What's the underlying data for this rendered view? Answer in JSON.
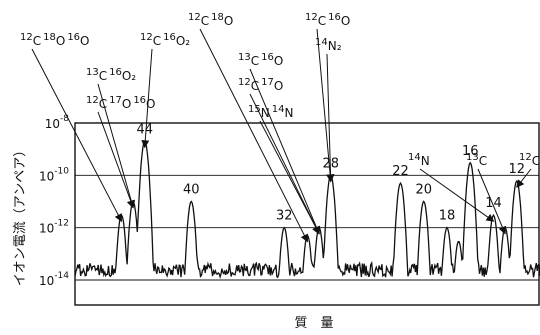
{
  "chart_data": {
    "type": "line",
    "title": "",
    "xlabel": "質　量",
    "ylabel": "イオン電流（アンペア）",
    "y_scale": "log",
    "ylim": [
      1e-14,
      1e-08
    ],
    "y_ticks": [
      {
        "value": 1e-08,
        "base": "10",
        "exp": "-8"
      },
      {
        "value": 1e-10,
        "base": "10",
        "exp": "-10"
      },
      {
        "value": 1e-12,
        "base": "10",
        "exp": "-12"
      },
      {
        "value": 1e-14,
        "base": "10",
        "exp": "-14"
      }
    ],
    "x_direction": "mass decreasing left to right",
    "grid": "horizontal lines at tick values",
    "peaks": [
      {
        "mass": 46,
        "height": 3e-12
      },
      {
        "mass": 45,
        "height": 1e-11
      },
      {
        "mass": 44,
        "height": 2e-09
      },
      {
        "mass": 40,
        "height": 1e-11
      },
      {
        "mass": 32,
        "height": 1e-12
      },
      {
        "mass": 30,
        "height": 5e-13
      },
      {
        "mass": 29,
        "height": 1e-12
      },
      {
        "mass": 28,
        "height": 1e-10
      },
      {
        "mass": 22,
        "height": 5e-11
      },
      {
        "mass": 20,
        "height": 1e-11
      },
      {
        "mass": 18,
        "height": 1e-12
      },
      {
        "mass": 17,
        "height": 3e-13
      },
      {
        "mass": 16,
        "height": 3e-10
      },
      {
        "mass": 14,
        "height": 3e-12
      },
      {
        "mass": 13,
        "height": 1e-12
      },
      {
        "mass": 12,
        "height": 6e-11
      }
    ],
    "peak_labels": [
      {
        "text": "44",
        "mass": 44
      },
      {
        "text": "40",
        "mass": 40
      },
      {
        "text": "32",
        "mass": 32
      },
      {
        "text": "28",
        "mass": 28
      },
      {
        "text": "22",
        "mass": 22
      },
      {
        "text": "20",
        "mass": 20
      },
      {
        "text": "18",
        "mass": 18
      },
      {
        "text": "16",
        "mass": 16
      },
      {
        "text": "14",
        "mass": 14
      },
      {
        "text": "12",
        "mass": 12
      }
    ],
    "annotations": [
      {
        "id": "a1",
        "parts": [
          [
            "12",
            "C"
          ],
          [
            "18",
            "O"
          ],
          [
            "16",
            "O"
          ]
        ],
        "target_mass": 46
      },
      {
        "id": "a2",
        "parts": [
          [
            "12",
            "C"
          ],
          [
            "16",
            "O₂"
          ]
        ],
        "target_mass": 44
      },
      {
        "id": "a3",
        "parts": [
          [
            "13",
            "C"
          ],
          [
            "16",
            "O₂"
          ]
        ],
        "target_mass": 45
      },
      {
        "id": "a4",
        "parts": [
          [
            "12",
            "C"
          ],
          [
            "17",
            "O"
          ],
          [
            "16",
            "O"
          ]
        ],
        "target_mass": 45
      },
      {
        "id": "a5",
        "parts": [
          [
            "12",
            "C"
          ],
          [
            "18",
            "O"
          ]
        ],
        "target_mass": 30
      },
      {
        "id": "a6",
        "parts": [
          [
            "12",
            "C"
          ],
          [
            "16",
            "O"
          ]
        ],
        "target_mass": 28
      },
      {
        "id": "a7",
        "parts": [
          [
            "14",
            "N₂"
          ]
        ],
        "target_mass": 28
      },
      {
        "id": "a8",
        "parts": [
          [
            "13",
            "C"
          ],
          [
            "16",
            "O"
          ]
        ],
        "target_mass": 29
      },
      {
        "id": "a9",
        "parts": [
          [
            "12",
            "C"
          ],
          [
            "17",
            "O"
          ]
        ],
        "target_mass": 29
      },
      {
        "id": "a10",
        "parts": [
          [
            "15",
            "N"
          ],
          [
            "14",
            "N"
          ]
        ],
        "target_mass": 29
      },
      {
        "id": "a11",
        "parts": [
          [
            "14",
            "N"
          ]
        ],
        "target_mass": 14
      },
      {
        "id": "a12",
        "parts": [
          [
            "13",
            "C"
          ]
        ],
        "target_mass": 13
      },
      {
        "id": "a13",
        "parts": [
          [
            "12",
            "C"
          ]
        ],
        "target_mass": 12
      }
    ]
  }
}
